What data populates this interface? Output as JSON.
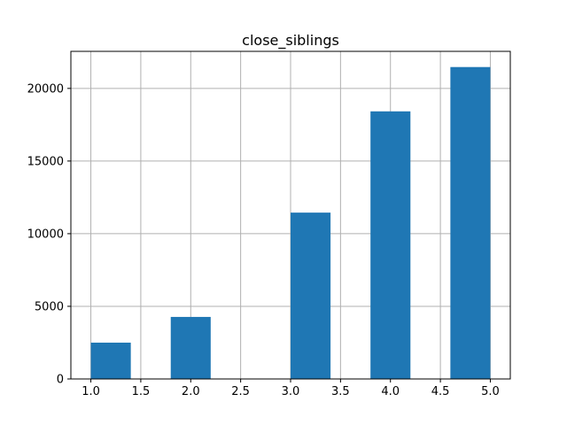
{
  "chart_data": {
    "type": "bar",
    "title": "close_siblings",
    "xlabel": "",
    "ylabel": "",
    "xlim": [
      0.8,
      5.2
    ],
    "ylim": [
      0,
      22550
    ],
    "grid": true,
    "bar_color": "#1f77b4",
    "grid_color": "#b0b0b0",
    "bins": [
      {
        "x0": 1.0,
        "x1": 1.4,
        "value": 2500
      },
      {
        "x0": 1.4,
        "x1": 1.8,
        "value": 0
      },
      {
        "x0": 1.8,
        "x1": 2.2,
        "value": 4270
      },
      {
        "x0": 2.2,
        "x1": 2.6,
        "value": 0
      },
      {
        "x0": 2.6,
        "x1": 3.0,
        "value": 0
      },
      {
        "x0": 3.0,
        "x1": 3.4,
        "value": 11450
      },
      {
        "x0": 3.4,
        "x1": 3.8,
        "value": 0
      },
      {
        "x0": 3.8,
        "x1": 4.2,
        "value": 18420
      },
      {
        "x0": 4.2,
        "x1": 4.6,
        "value": 0
      },
      {
        "x0": 4.6,
        "x1": 5.0,
        "value": 21470
      }
    ],
    "xticks": [
      {
        "value": 1.0,
        "label": "1.0"
      },
      {
        "value": 1.5,
        "label": "1.5"
      },
      {
        "value": 2.0,
        "label": "2.0"
      },
      {
        "value": 2.5,
        "label": "2.5"
      },
      {
        "value": 3.0,
        "label": "3.0"
      },
      {
        "value": 3.5,
        "label": "3.5"
      },
      {
        "value": 4.0,
        "label": "4.0"
      },
      {
        "value": 4.5,
        "label": "4.5"
      },
      {
        "value": 5.0,
        "label": "5.0"
      }
    ],
    "yticks": [
      {
        "value": 0,
        "label": "0"
      },
      {
        "value": 5000,
        "label": "5000"
      },
      {
        "value": 10000,
        "label": "10000"
      },
      {
        "value": 15000,
        "label": "15000"
      },
      {
        "value": 20000,
        "label": "20000"
      }
    ]
  }
}
